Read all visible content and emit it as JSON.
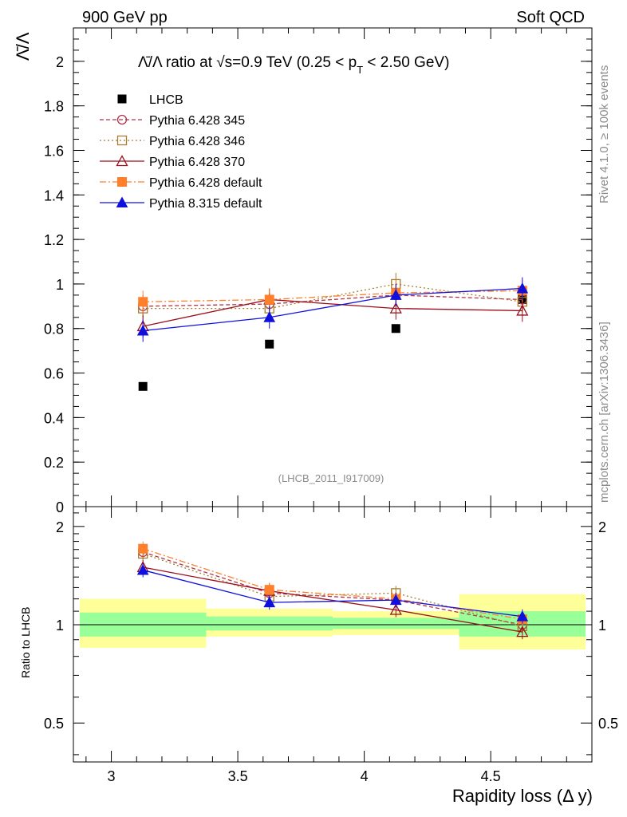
{
  "header": {
    "left": "900 GeV pp",
    "right": "Soft QCD"
  },
  "side": {
    "rivet": "Rivet 4.1.0, ≥ 100k events",
    "mcplots": "mcplots.cern.ch [arXiv:1306.3436]"
  },
  "chart_data": {
    "type": "scatter",
    "title_parts": {
      "a": "Λ̄/Λ ratio at √s=0.9 TeV (0.25 < p",
      "sub": "T",
      "b": " < 2.50 GeV)"
    },
    "ylabel": "Λ̄/Λ",
    "xlabel": "Rapidity loss (Δ y)",
    "watermark": "(LHCB_2011_I917009)",
    "ratio_ylabel": "Ratio to LHCB",
    "xlim": [
      2.85,
      4.9
    ],
    "ylim": [
      0,
      2.15
    ],
    "ratio_ylim": [
      0.38,
      2.3
    ],
    "x_ticks": [
      "3",
      "3.5",
      "4",
      "4.5"
    ],
    "y_ticks": [
      "0",
      "0.2",
      "0.4",
      "0.6",
      "0.8",
      "1",
      "1.2",
      "1.4",
      "1.6",
      "1.8",
      "2"
    ],
    "ratio_ticks": [
      "0.5",
      "1",
      "2"
    ],
    "x": [
      3.125,
      3.625,
      4.125,
      4.625
    ],
    "bin_edges": [
      2.875,
      3.375,
      3.875,
      4.375,
      4.875
    ],
    "data": {
      "name": "LHCB",
      "values": [
        0.54,
        0.73,
        0.8,
        0.93
      ]
    },
    "band_inner": [
      [
        0.92,
        1.09
      ],
      [
        0.96,
        1.06
      ],
      [
        0.97,
        1.05
      ],
      [
        0.92,
        1.1
      ]
    ],
    "band_outer": [
      [
        0.85,
        1.2
      ],
      [
        0.92,
        1.12
      ],
      [
        0.93,
        1.1
      ],
      [
        0.84,
        1.24
      ]
    ],
    "series": [
      {
        "name": "Pythia 6.428 345",
        "color": "#b2334c",
        "dash": "5,3",
        "marker": "circle",
        "values": [
          0.9,
          0.91,
          0.95,
          0.93
        ],
        "ratio": [
          1.67,
          1.25,
          1.19,
          1.0
        ]
      },
      {
        "name": "Pythia 6.428 346",
        "color": "#a67c2e",
        "dash": "2,3",
        "marker": "square",
        "values": [
          0.89,
          0.89,
          1.0,
          0.92
        ],
        "ratio": [
          1.65,
          1.22,
          1.25,
          0.99
        ]
      },
      {
        "name": "Pythia 6.428 370",
        "color": "#990f1c",
        "dash": "",
        "marker": "triangle",
        "values": [
          0.81,
          0.93,
          0.89,
          0.88
        ],
        "ratio": [
          1.5,
          1.27,
          1.11,
          0.95
        ]
      },
      {
        "name": "Pythia 6.428 default",
        "color": "#ff7f2a",
        "dash": "8,3,2,3",
        "marker": "fsquare",
        "values": [
          0.92,
          0.93,
          0.96,
          0.97
        ],
        "ratio": [
          1.71,
          1.28,
          1.2,
          1.04
        ]
      },
      {
        "name": "Pythia 8.315 default",
        "color": "#1010dd",
        "dash": "",
        "marker": "ftriangle",
        "values": [
          0.79,
          0.85,
          0.95,
          0.98
        ],
        "ratio": [
          1.47,
          1.17,
          1.19,
          1.06
        ]
      }
    ]
  }
}
